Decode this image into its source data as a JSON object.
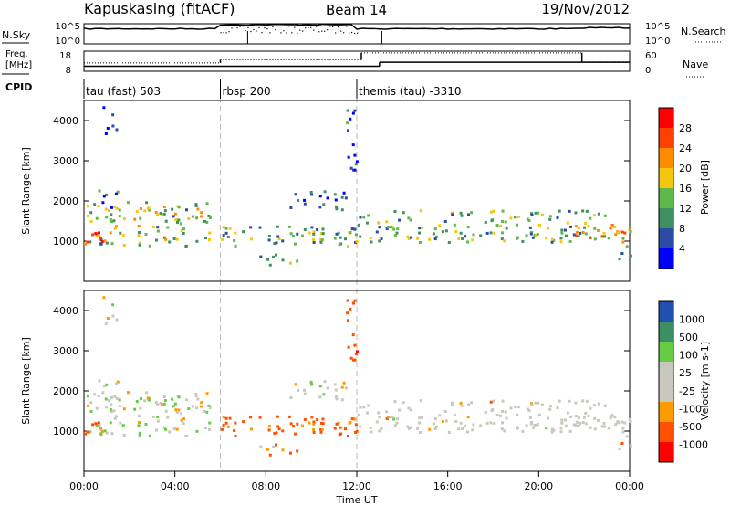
{
  "header": {
    "station": "Kapuskasing (fitACF)",
    "beam": "Beam 14",
    "date": "19/Nov/2012"
  },
  "top_panels": {
    "nsky_label": "N.Sky",
    "nsky_ticks": [
      "10^5",
      "10^0"
    ],
    "nsearch_label": "N.Search",
    "nsearch_ticks": [
      "10^5",
      "10^0"
    ],
    "freq_label_1": "Freq.",
    "freq_label_2": "[MHz]",
    "freq_ticks": [
      "18",
      "8"
    ],
    "nave_label": "Nave",
    "nave_ticks": [
      "60",
      "0"
    ],
    "cpid_label": "CPID"
  },
  "modes": [
    {
      "label": "tau (fast) 503",
      "start_hour": 0
    },
    {
      "label": "rbsp 200",
      "start_hour": 6
    },
    {
      "label": "themis (tau) -3310",
      "start_hour": 12
    }
  ],
  "power_panel": {
    "ylabel": "Slant Range [km]",
    "yticks": [
      "4000",
      "3000",
      "2000",
      "1000"
    ],
    "colorbar_label": "Power [dB]",
    "colorbar_ticks": [
      "28",
      "24",
      "20",
      "16",
      "12",
      "8",
      "4"
    ]
  },
  "velocity_panel": {
    "ylabel": "Slant Range [km]",
    "yticks": [
      "4000",
      "3000",
      "2000",
      "1000"
    ],
    "colorbar_label": "Velocity [m s-1]",
    "colorbar_ticks": [
      "1000",
      "500",
      "100",
      "25",
      "-25",
      "-100",
      "-500",
      "-1000"
    ]
  },
  "xaxis": {
    "ticks": [
      "00:00",
      "04:00",
      "08:00",
      "12:00",
      "16:00",
      "20:00",
      "00:00"
    ],
    "label": "Time UT"
  },
  "colors": {
    "power_scale": [
      "#0000ff",
      "#2b4ba6",
      "#3f8f60",
      "#5fb84a",
      "#f5c60e",
      "#ff8c00",
      "#ff4000",
      "#ff0000"
    ],
    "velocity_scale": [
      "#ff0000",
      "#ff5000",
      "#ff9a00",
      "#c8c8be",
      "#c8c8be",
      "#66cc44",
      "#3e8e64",
      "#2050b0"
    ],
    "ground_scatter": "#c8c8be"
  },
  "chart_data": {
    "type": "heatmap",
    "x_range_hours": [
      0,
      24
    ],
    "y_range_km": [
      0,
      4500
    ],
    "scatter_regions": [
      {
        "t0": 0.0,
        "t1": 5.6,
        "r0": 900,
        "r1": 2000,
        "power": 14,
        "velocity": 60
      },
      {
        "t0": 0.0,
        "t1": 0.8,
        "r0": 900,
        "r1": 1400,
        "power": 26,
        "velocity": -200
      },
      {
        "t0": 0.4,
        "t1": 1.6,
        "r0": 1800,
        "r1": 2300,
        "power": 8,
        "velocity": 80
      },
      {
        "t0": 0.8,
        "t1": 1.4,
        "r0": 3700,
        "r1": 4400,
        "power": 6,
        "velocity": 25
      },
      {
        "t0": 6.0,
        "t1": 12.0,
        "r0": 900,
        "r1": 1400,
        "power": 12,
        "velocity": -150
      },
      {
        "t0": 7.5,
        "t1": 9.5,
        "r0": 400,
        "r1": 700,
        "power": 10,
        "velocity": -100
      },
      {
        "t0": 9.0,
        "t1": 11.5,
        "r0": 1800,
        "r1": 2300,
        "power": 6,
        "velocity": 0
      },
      {
        "t0": 11.5,
        "t1": 12.0,
        "r0": 2800,
        "r1": 4400,
        "power": 6,
        "velocity": -400
      },
      {
        "t0": 12.0,
        "t1": 23.0,
        "r0": 1000,
        "r1": 1800,
        "power": 12,
        "velocity": 0
      },
      {
        "t0": 21.5,
        "t1": 24.0,
        "r0": 900,
        "r1": 1500,
        "power": 20,
        "velocity": 0
      },
      {
        "t0": 23.5,
        "t1": 24.0,
        "r0": 500,
        "r1": 800,
        "power": 10,
        "velocity": 0
      }
    ],
    "ground_scatter_hours": [
      12.0,
      24.0
    ],
    "freq_mhz": [
      {
        "start_hour": 0,
        "end_hour": 13,
        "value": 10.5
      },
      {
        "start_hour": 13,
        "end_hour": 24,
        "value": 12.5
      }
    ],
    "nave": [
      {
        "start_hour": 0,
        "end_hour": 6,
        "value": 25
      },
      {
        "start_hour": 6,
        "end_hour": 12.2,
        "value": 34
      },
      {
        "start_hour": 12.2,
        "end_hour": 21.9,
        "value": 55
      },
      {
        "start_hour": 21.9,
        "end_hour": 24,
        "value": 28
      }
    ]
  }
}
